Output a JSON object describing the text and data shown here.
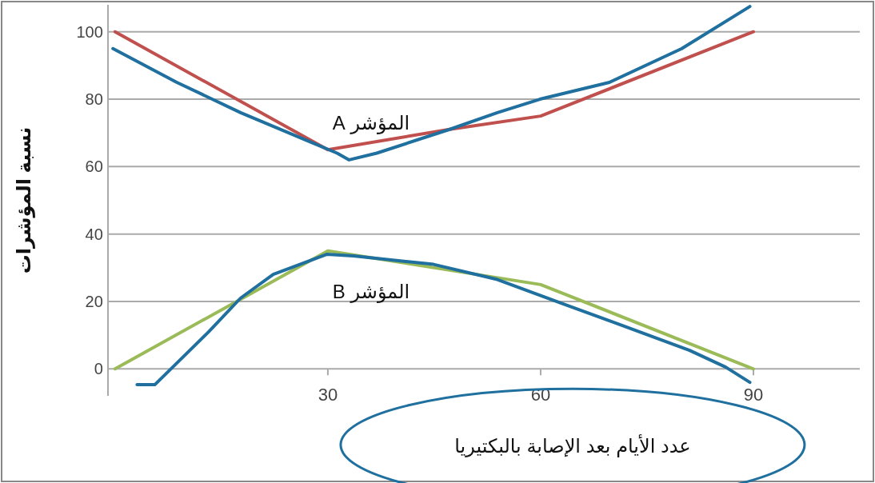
{
  "chart_data": {
    "type": "line",
    "ylabel": "نسبة المؤشرات",
    "xlabel": "عدد الأيام بعد الإصابة بالبكتيريا",
    "xlim": [
      -1,
      105
    ],
    "xticks": [
      30,
      60,
      90
    ],
    "ylim": [
      -8,
      108
    ],
    "yticks": [
      0,
      20,
      40,
      60,
      80,
      100
    ],
    "grid": "y",
    "annotations": [
      "المؤشر A",
      "المؤشر B"
    ],
    "series": [
      {
        "color": "#c0504d",
        "x": [
          0,
          30,
          47,
          60,
          90
        ],
        "values": [
          100,
          65,
          71,
          75,
          100
        ]
      },
      {
        "color": "#9bbb59",
        "x": [
          0,
          30,
          60,
          90
        ],
        "values": [
          0,
          35,
          25,
          0
        ]
      },
      {
        "color": "#1f6f9f",
        "x": [
          -0.3,
          8.7,
          17.7,
          27.9,
          31.3,
          33,
          36.9,
          47.1,
          53.9,
          59.9,
          69.7,
          79.9,
          89.5
        ],
        "values": [
          95,
          85,
          76,
          67,
          64,
          62,
          64,
          71,
          76,
          80,
          85,
          95,
          107.5
        ]
      },
      {
        "color": "#1f6f9f",
        "x": [
          3.1,
          5.6,
          13.2,
          17.7,
          22.3,
          29.9,
          33.6,
          44.9,
          53.9,
          62.9,
          72,
          81,
          86.1,
          89.5
        ],
        "values": [
          -4.7,
          -4.7,
          11,
          21,
          28,
          34,
          33.5,
          31,
          26.5,
          19.5,
          12.5,
          5.5,
          0.5,
          -4
        ]
      }
    ]
  }
}
